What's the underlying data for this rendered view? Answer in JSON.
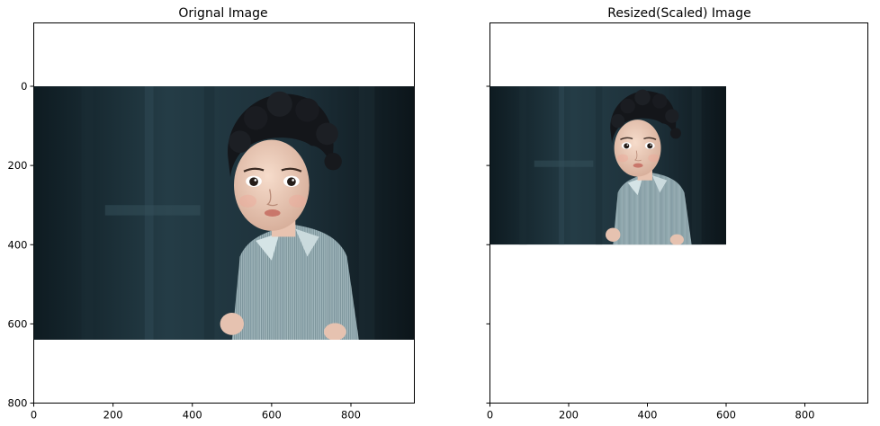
{
  "chart_data": [
    {
      "type": "image",
      "title": "Orignal Image",
      "image": {
        "extent_x": [
          0,
          960
        ],
        "extent_y": [
          0,
          640
        ],
        "description_colors": [
          "#0f1e24",
          "#2b4652",
          "#7f9aa2",
          "#f0d8c8"
        ]
      },
      "xlim": [
        0,
        960
      ],
      "ylim": [
        800,
        -160
      ],
      "xticks": [
        0,
        200,
        400,
        600,
        800
      ],
      "yticks": [
        0,
        200,
        400,
        600,
        800
      ],
      "sharey_ticklabels_visible": true
    },
    {
      "type": "image",
      "title": "Resized(Scaled) Image",
      "image": {
        "extent_x": [
          0,
          600
        ],
        "extent_y": [
          0,
          400
        ]
      },
      "xlim": [
        0,
        960
      ],
      "ylim": [
        800,
        -160
      ],
      "xticks": [
        0,
        200,
        400,
        600,
        800
      ],
      "yticks": [
        0,
        200,
        400,
        600,
        800
      ],
      "sharey_ticklabels_visible": false
    }
  ]
}
